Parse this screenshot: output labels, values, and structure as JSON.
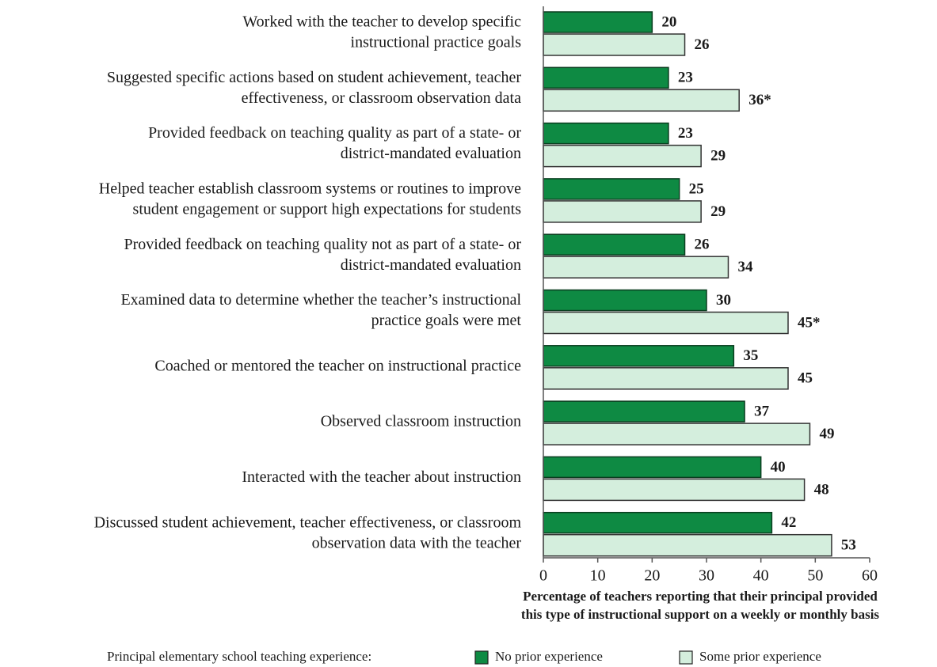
{
  "chart_data": {
    "type": "hbar",
    "categories": [
      [
        "Worked with the teacher to develop specific",
        "instructional practice goals"
      ],
      [
        "Suggested specific actions based on student achievement, teacher",
        "effectiveness, or classroom observation data"
      ],
      [
        "Provided feedback on teaching quality as part of a state- or",
        "district-mandated evaluation"
      ],
      [
        "Helped teacher establish classroom systems or routines to improve",
        "student engagement or support high expectations for students"
      ],
      [
        "Provided feedback on teaching quality not as part of a state- or",
        "district-mandated evaluation"
      ],
      [
        "Examined data to determine whether the teacher’s instructional",
        "practice goals were met"
      ],
      [
        "Coached or mentored the teacher on instructional practice"
      ],
      [
        "Observed classroom instruction"
      ],
      [
        "Interacted with the teacher about instruction"
      ],
      [
        "Discussed student achievement, teacher effectiveness, or classroom",
        "observation data with the teacher"
      ]
    ],
    "series": [
      {
        "name": "No prior experience",
        "color": "#0e8a43",
        "values": [
          20,
          23,
          23,
          25,
          26,
          30,
          35,
          37,
          40,
          42
        ]
      },
      {
        "name": "Some prior experience",
        "color": "#d4eedd",
        "values": [
          26,
          36,
          29,
          29,
          34,
          45,
          45,
          49,
          48,
          53
        ],
        "value_labels": [
          "26",
          "36*",
          "29",
          "29",
          "34",
          "45*",
          "45",
          "49",
          "48",
          "53"
        ]
      }
    ],
    "xlabel": [
      "Percentage of teachers reporting that their principal  provided",
      "this type of  instructional support on a weekly or monthly basis"
    ],
    "xlim": [
      0,
      60
    ],
    "xticks": [
      0,
      10,
      20,
      30,
      40,
      50,
      60
    ],
    "legend_title": "Principal elementary school teaching experience:"
  }
}
